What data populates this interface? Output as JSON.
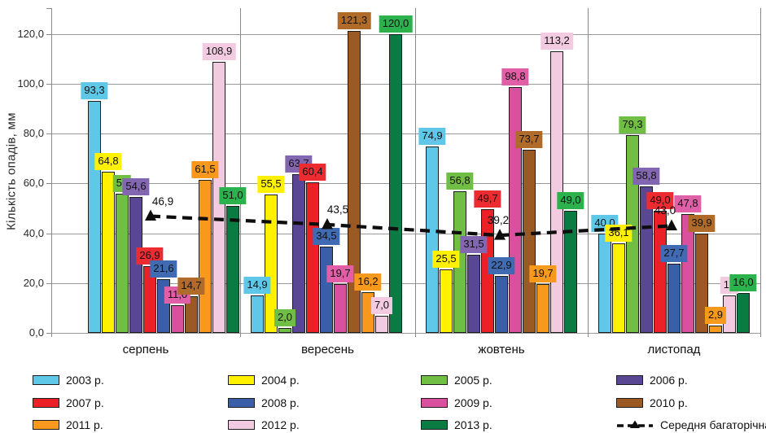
{
  "chart_data": {
    "type": "bar",
    "title": "",
    "ylabel": "Кількість опадів, мм",
    "xlabel": "",
    "categories": [
      "серпень",
      "вересень",
      "жовтень",
      "листопад"
    ],
    "y_ticks": [
      "0,0",
      "20,0",
      "40,0",
      "60,0",
      "80,0",
      "100,0",
      "120,0"
    ],
    "ylim": [
      0,
      130
    ],
    "grid": "horizontal",
    "legend_position": "bottom",
    "series": [
      {
        "name": "2003 р.",
        "color": "#5fc8e9",
        "label_color": "#5fc8e9",
        "values": [
          93.3,
          14.9,
          74.9,
          40.0
        ],
        "labels": [
          "93,3",
          "14,9",
          "74,9",
          "40,0"
        ]
      },
      {
        "name": "2004 р.",
        "color": "#fff100",
        "label_color": "#fff100",
        "values": [
          64.8,
          55.5,
          25.5,
          36.1
        ],
        "labels": [
          "64,8",
          "55,5",
          "25,5",
          "36,1"
        ]
      },
      {
        "name": "2005 р.",
        "color": "#70be44",
        "label_color": "#70be44",
        "values": [
          56.0,
          2.0,
          56.8,
          79.3
        ],
        "labels": [
          "56",
          "2,0",
          "56,8",
          "79,3"
        ]
      },
      {
        "name": "2006 р.",
        "color": "#5a4793",
        "label_color": "#8266af",
        "values": [
          54.6,
          63.7,
          31.5,
          58.8
        ],
        "labels": [
          "54,6",
          "63,7",
          "31,5",
          "58,8"
        ]
      },
      {
        "name": "2007 р.",
        "color": "#eb2127",
        "label_color": "#ed2c32",
        "values": [
          26.9,
          60.4,
          49.7,
          49.0
        ],
        "labels": [
          "26,9",
          "60,4",
          "49,7",
          "49,0"
        ]
      },
      {
        "name": "2008 р.",
        "color": "#3a5fa8",
        "label_color": "#406bb3",
        "values": [
          21.6,
          34.5,
          22.9,
          27.7
        ],
        "labels": [
          "21,6",
          "34,5",
          "22,9",
          "27,7"
        ]
      },
      {
        "name": "2009 р.",
        "color": "#d8509e",
        "label_color": "#e05fa7",
        "values": [
          11.0,
          19.7,
          98.8,
          47.8
        ],
        "labels": [
          "11,0",
          "19,7",
          "98,8",
          "47,8"
        ]
      },
      {
        "name": "2010 р.",
        "color": "#9b5a24",
        "label_color": "#b06b2b",
        "values": [
          14.7,
          121.3,
          73.7,
          39.9
        ],
        "labels": [
          "14,7",
          "121,3",
          "73,7",
          "39,9"
        ]
      },
      {
        "name": "2011 р.",
        "color": "#f8981d",
        "label_color": "#f8981d",
        "values": [
          61.5,
          16.2,
          19.7,
          2.9
        ],
        "labels": [
          "61,5",
          "16,2",
          "19,7",
          "2,9"
        ]
      },
      {
        "name": "2012 р.",
        "color": "#f3cbe0",
        "label_color": "#f3cbe0",
        "values": [
          108.9,
          7.0,
          113.2,
          15.0
        ],
        "labels": [
          "108,9",
          "7,0",
          "113,2",
          "15"
        ]
      },
      {
        "name": "2013 р.",
        "color": "#0a7b43",
        "label_color": "#2bb24c",
        "values": [
          51.0,
          120.0,
          49.0,
          16.0
        ],
        "labels": [
          "51,0",
          "120,0",
          "49,0",
          "16,0"
        ]
      }
    ],
    "average_line": {
      "name": "Середня багаторічна",
      "style": "dashed",
      "marker": "triangle",
      "color": "#0d0d0d",
      "values": [
        46.9,
        43.5,
        39.2,
        43.0
      ],
      "labels": [
        "46,9",
        "43,5",
        "39,2",
        "43,0"
      ]
    }
  }
}
